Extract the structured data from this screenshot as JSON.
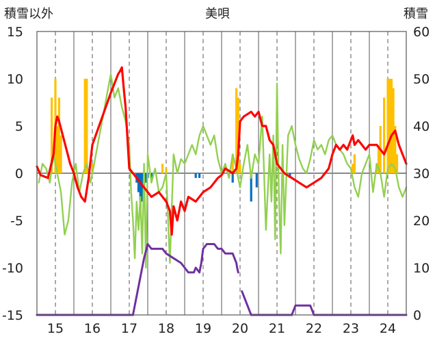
{
  "chart_data": {
    "type": "line",
    "title": "美唄",
    "ylabel_left": "積雪以外",
    "ylabel_right": "積雪",
    "ylim_left": [
      -15,
      15
    ],
    "ylim_right": [
      0,
      60
    ],
    "yticks_left": [
      "15",
      "10",
      "5",
      "0",
      "-5",
      "-10",
      "-15"
    ],
    "yticks_right": [
      "60",
      "50",
      "40",
      "30",
      "20",
      "10",
      "0"
    ],
    "xlim": [
      14.5,
      24.5
    ],
    "xticks": [
      "15",
      "16",
      "17",
      "18",
      "19",
      "20",
      "21",
      "22",
      "23",
      "24"
    ],
    "grid": true,
    "colors": {
      "red_line": "#ff0000",
      "green_line": "#92d050",
      "purple_line": "#7030a0",
      "orange_bars": "#ffc000",
      "blue_bars": "#0070c0",
      "grid": "#555555",
      "zero_line": "#888888"
    },
    "series": [
      {
        "axis": "left",
        "color": "red",
        "x": [
          14.5,
          14.6,
          14.8,
          14.95,
          15.0,
          15.05,
          15.1,
          15.2,
          15.3,
          15.4,
          15.5,
          15.6,
          15.7,
          15.8,
          15.9,
          16.0,
          16.5,
          16.6,
          16.7,
          16.75,
          16.8,
          16.85,
          16.9,
          17.0,
          17.2,
          17.4,
          17.6,
          17.8,
          17.9,
          18.0,
          18.1,
          18.15,
          18.2,
          18.3,
          18.4,
          18.5,
          18.6,
          18.8,
          19.0,
          19.2,
          19.4,
          19.5,
          19.6,
          19.8,
          19.9,
          19.95,
          20.0,
          20.1,
          20.3,
          20.4,
          20.5,
          20.6,
          20.7,
          20.8,
          20.9,
          21.0,
          21.2,
          21.4,
          21.6,
          21.8,
          22.0,
          22.2,
          22.4,
          22.5,
          22.6,
          22.7,
          22.8,
          22.9,
          23.0,
          23.05,
          23.1,
          23.2,
          23.3,
          23.4,
          23.5,
          23.7,
          23.8,
          23.9,
          24.0,
          24.05,
          24.1,
          24.2,
          24.3,
          24.4,
          24.5
        ],
        "values": [
          0.7,
          -0.2,
          -0.5,
          2.0,
          5.0,
          6.0,
          5.5,
          4.0,
          2.5,
          1.0,
          0.0,
          -1.5,
          -2.5,
          -3.0,
          -0.5,
          3.0,
          8.5,
          9.5,
          10.5,
          10.8,
          11.2,
          9.0,
          7.0,
          0.5,
          -0.5,
          -1.5,
          -2.5,
          -2.0,
          -2.5,
          -3.0,
          -4.0,
          -6.5,
          -3.5,
          -5.0,
          -3.0,
          -4.0,
          -2.5,
          -3.0,
          -2.0,
          -1.5,
          -0.5,
          -0.2,
          0.5,
          0.0,
          0.5,
          2.0,
          5.5,
          6.0,
          6.5,
          6.0,
          6.5,
          5.0,
          5.0,
          3.5,
          3.0,
          1.0,
          0.0,
          -0.5,
          -1.0,
          -1.5,
          -1.0,
          -0.5,
          0.5,
          2.0,
          3.0,
          2.5,
          3.0,
          2.5,
          3.5,
          4.0,
          3.0,
          3.5,
          3.0,
          2.5,
          3.0,
          3.0,
          2.5,
          2.0,
          3.0,
          3.5,
          4.0,
          4.5,
          3.0,
          2.0,
          1.0
        ]
      },
      {
        "axis": "left",
        "color": "green",
        "x": [
          14.55,
          14.65,
          14.75,
          14.85,
          14.95,
          15.05,
          15.15,
          15.25,
          15.35,
          15.45,
          15.55,
          15.65,
          15.75,
          15.85,
          15.95,
          16.05,
          16.5,
          16.6,
          16.7,
          16.8,
          16.9,
          17.0,
          17.05,
          17.1,
          17.15,
          17.2,
          17.25,
          17.3,
          17.35,
          17.4,
          17.45,
          17.5,
          17.6,
          17.7,
          17.8,
          17.9,
          18.0,
          18.1,
          18.2,
          18.3,
          18.4,
          18.5,
          18.6,
          18.7,
          18.8,
          18.9,
          19.0,
          19.1,
          19.2,
          19.3,
          19.4,
          19.5,
          19.6,
          19.7,
          19.8,
          19.9,
          20.0,
          20.1,
          20.2,
          20.3,
          20.4,
          20.5,
          20.6,
          20.7,
          20.8,
          20.85,
          20.9,
          20.95,
          21.0,
          21.05,
          21.1,
          21.15,
          21.2,
          21.3,
          21.4,
          21.5,
          21.6,
          21.7,
          21.8,
          21.9,
          22.0,
          22.1,
          22.2,
          22.3,
          22.4,
          22.5,
          22.6,
          22.7,
          22.8,
          22.9,
          23.0,
          23.1,
          23.2,
          23.3,
          23.4,
          23.5,
          23.6,
          23.7,
          23.8,
          23.9,
          24.0,
          24.1,
          24.2,
          24.3,
          24.4,
          24.5
        ],
        "values": [
          -1.0,
          1.0,
          0.5,
          -1.0,
          2.0,
          0.0,
          -2.0,
          -6.5,
          -5.0,
          -1.0,
          1.0,
          -2.0,
          0.0,
          1.0,
          -1.0,
          1.0,
          10.5,
          8.0,
          9.0,
          7.0,
          5.5,
          3.0,
          -2.0,
          -5.0,
          -9.0,
          -3.0,
          -6.0,
          -2.5,
          -8.5,
          1.0,
          -10.0,
          2.0,
          -1.0,
          0.5,
          -2.0,
          -1.5,
          0.0,
          -9.5,
          2.0,
          0.0,
          1.5,
          1.0,
          2.0,
          3.0,
          2.0,
          4.0,
          5.0,
          4.0,
          3.0,
          4.0,
          1.5,
          0.0,
          1.0,
          -0.5,
          2.0,
          0.5,
          -1.5,
          1.0,
          3.0,
          -0.5,
          2.0,
          1.0,
          6.0,
          -6.0,
          2.0,
          -3.0,
          4.0,
          -7.0,
          9.5,
          -2.0,
          -8.5,
          3.0,
          -5.5,
          4.0,
          5.0,
          3.0,
          1.5,
          0.5,
          0.0,
          1.5,
          3.5,
          2.5,
          3.0,
          2.0,
          3.5,
          4.0,
          3.0,
          2.5,
          2.0,
          1.0,
          0.5,
          -1.5,
          -2.5,
          0.0,
          1.0,
          2.0,
          -2.0,
          1.0,
          0.0,
          -2.5,
          0.5,
          1.0,
          0.5,
          -1.5,
          -2.5,
          -1.5
        ]
      },
      {
        "axis": "right",
        "color": "purple",
        "segments": [
          {
            "x": [
              14.5,
              17.1
            ],
            "values": [
              0,
              0
            ]
          },
          {
            "x": [
              17.1,
              17.3,
              17.4,
              17.5,
              17.6,
              17.9,
              18.0,
              18.2,
              18.4,
              18.5,
              18.6,
              18.75,
              18.8,
              18.9,
              18.95,
              19.0,
              19.1,
              19.3,
              19.4,
              19.5,
              19.6,
              19.8,
              19.9,
              19.92,
              19.95
            ],
            "values": [
              0,
              8,
              12,
              15,
              14,
              14,
              13,
              12,
              11,
              10,
              9,
              9,
              10,
              9,
              11,
              14,
              15,
              15,
              14,
              14,
              13,
              13,
              11,
              10,
              9
            ]
          },
          {
            "x": [
              20.05,
              20.1,
              20.2,
              20.3,
              21.4
            ],
            "values": [
              5,
              4,
              2,
              0,
              0
            ]
          },
          {
            "x": [
              21.4,
              21.5,
              21.9,
              22.0,
              24.5
            ],
            "values": [
              0,
              2,
              2,
              0,
              0
            ]
          }
        ]
      }
    ],
    "bars_orange": {
      "axis": "left",
      "x": [
        14.9,
        15.0,
        15.05,
        15.1,
        15.15,
        15.8,
        15.85,
        16.0,
        17.9,
        18.0,
        19.8,
        19.9,
        19.95,
        20.0,
        23.05,
        23.1,
        23.7,
        23.75,
        23.8,
        23.9,
        24.0,
        24.05,
        24.1,
        24.15,
        24.2,
        24.25
      ],
      "values": [
        8,
        10,
        5,
        8,
        4,
        10,
        10,
        1,
        1,
        0.5,
        2,
        9,
        8,
        1,
        1,
        2,
        1,
        3,
        5,
        8,
        10,
        10,
        10,
        9,
        5,
        2
      ]
    },
    "bars_blue": {
      "axis": "left",
      "x": [
        17.2,
        17.25,
        17.3,
        17.35,
        17.4,
        17.45,
        17.5,
        17.6,
        18.8,
        18.9,
        19.8,
        20.3,
        20.45,
        21.35
      ],
      "values": [
        -1.0,
        -2.0,
        -4.5,
        -3.0,
        -2.0,
        -1.0,
        -0.5,
        -0.5,
        -0.5,
        -0.5,
        -1.0,
        -3.0,
        -1.5,
        -0.5
      ]
    }
  }
}
